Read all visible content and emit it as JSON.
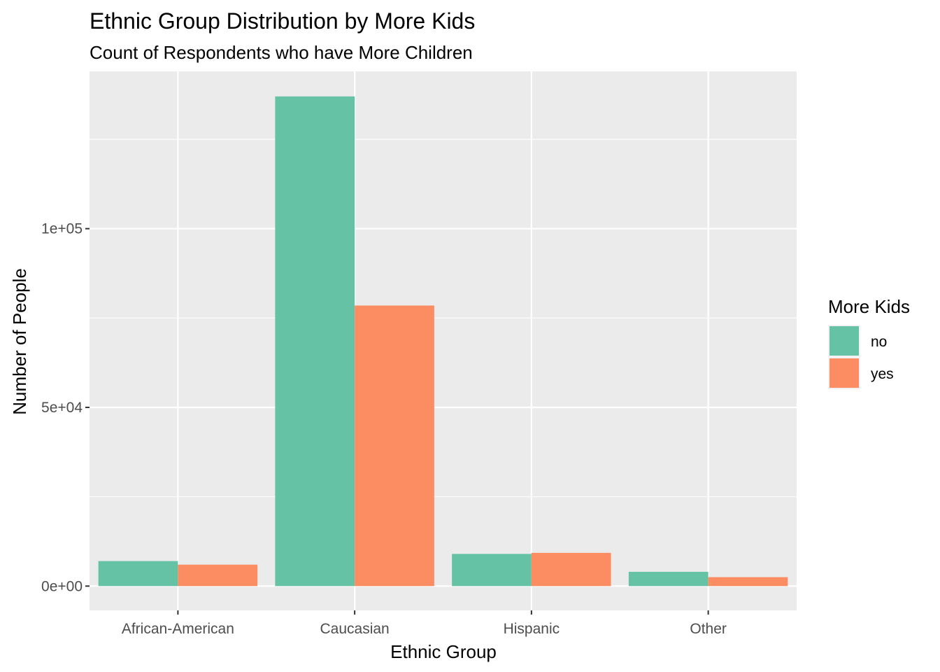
{
  "chart_data": {
    "type": "bar",
    "title": "Ethnic Group Distribution by More Kids",
    "subtitle": "Count of Respondents who have More Children",
    "xlabel": "Ethnic Group",
    "ylabel": "Number of People",
    "categories": [
      "African-American",
      "Caucasian",
      "Hispanic",
      "Other"
    ],
    "series": [
      {
        "name": "no",
        "color": "#66c2a5",
        "values": [
          7000,
          137000,
          9000,
          4000
        ]
      },
      {
        "name": "yes",
        "color": "#fc8d62",
        "values": [
          6000,
          78500,
          9300,
          2500
        ]
      }
    ],
    "ylim": [
      -6800,
      144000
    ],
    "yticks": [
      0,
      50000,
      100000
    ],
    "ytick_labels": [
      "0e+00",
      "5e+04",
      "1e+05"
    ],
    "legend": {
      "title": "More Kids",
      "position": "right"
    },
    "grid": true,
    "panel_background": "#ebebeb"
  }
}
